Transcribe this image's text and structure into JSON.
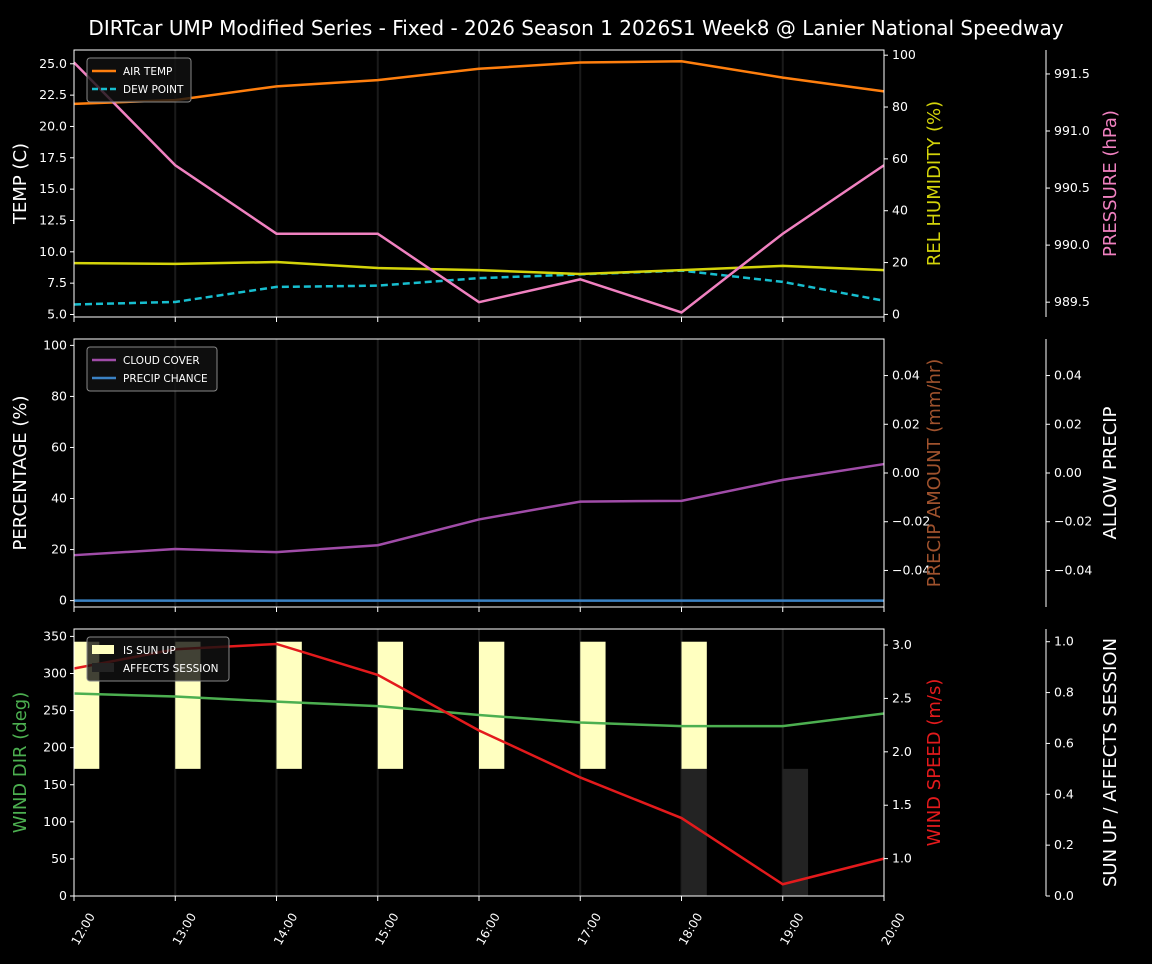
{
  "title": "DIRTcar UMP Modified Series - Fixed - 2026 Season 1 2026S1 Week8 @ Lanier National Speedway",
  "chart_data": [
    {
      "type": "line",
      "x": [
        "12:00",
        "13:00",
        "14:00",
        "15:00",
        "16:00",
        "17:00",
        "18:00",
        "19:00",
        "20:00"
      ],
      "ylabel": "TEMP (C)",
      "ylim": [
        4.8,
        26.1
      ],
      "yticks": [
        "5.0",
        "7.5",
        "10.0",
        "12.5",
        "15.0",
        "17.5",
        "20.0",
        "22.5",
        "25.0"
      ],
      "y2label": "REL HUMIDITY (%)",
      "y2lim": [
        -1,
        102
      ],
      "y2ticks": [
        "0",
        "20",
        "40",
        "60",
        "80",
        "100"
      ],
      "y3label": "PRESSURE (hPa)",
      "y3lim": [
        989.37,
        991.71
      ],
      "y3ticks": [
        "989.5",
        "990.0",
        "990.5",
        "991.0",
        "991.5"
      ],
      "legend": "top-left",
      "grid": "vertical",
      "series": [
        {
          "name": "AIR TEMP",
          "axis": "y",
          "color": "#ff7f0e",
          "dash": false,
          "values": [
            21.8,
            22.1,
            23.2,
            23.7,
            24.6,
            25.1,
            25.2,
            23.9,
            22.8
          ]
        },
        {
          "name": "DEW POINT",
          "axis": "y",
          "color": "#17becf",
          "dash": true,
          "values": [
            5.8,
            6.0,
            7.2,
            7.3,
            7.9,
            8.2,
            8.5,
            7.6,
            6.1
          ]
        },
        {
          "axis": "y2",
          "color": "#d4d40a",
          "dash": false,
          "values": [
            19.8,
            19.5,
            20.2,
            17.9,
            17.1,
            15.6,
            17.1,
            18.7,
            17.1
          ]
        },
        {
          "axis": "y3",
          "color": "#f081c0",
          "dash": false,
          "values": [
            991.6,
            990.7,
            990.1,
            990.1,
            989.5,
            989.7,
            989.41,
            990.1,
            990.7
          ]
        }
      ]
    },
    {
      "type": "line",
      "x": [
        "12:00",
        "13:00",
        "14:00",
        "15:00",
        "16:00",
        "17:00",
        "18:00",
        "19:00",
        "20:00"
      ],
      "ylabel": "PERCENTAGE (%)",
      "ylim": [
        -2.5,
        102.5
      ],
      "yticks": [
        "0",
        "20",
        "40",
        "60",
        "80",
        "100"
      ],
      "y2label": "PRECIP AMOUNT (mm/hr)",
      "y2lim": [
        -0.055,
        0.055
      ],
      "y2ticks": [
        "−0.04",
        "−0.02",
        "0.00",
        "0.02",
        "0.04"
      ],
      "y3label": "ALLOW PRECIP",
      "y3lim": [
        -0.055,
        0.055
      ],
      "y3ticks": [
        "−0.04",
        "−0.02",
        "0.00",
        "0.02",
        "0.04"
      ],
      "legend": "top-left",
      "grid": "vertical",
      "series": [
        {
          "name": "CLOUD COVER",
          "axis": "y",
          "color": "#a04ca8",
          "values": [
            17.8,
            20.2,
            19.0,
            21.7,
            31.8,
            38.8,
            39.1,
            47.3,
            53.5
          ]
        },
        {
          "name": "PRECIP CHANCE",
          "axis": "y",
          "color": "#3b82c4",
          "values": [
            0,
            0,
            0,
            0,
            0,
            0,
            0,
            0,
            0
          ]
        }
      ]
    },
    {
      "type": "line",
      "x": [
        "12:00",
        "13:00",
        "14:00",
        "15:00",
        "16:00",
        "17:00",
        "18:00",
        "19:00",
        "20:00"
      ],
      "ylabel": "WIND DIR (deg)",
      "ylim": [
        0,
        360
      ],
      "yticks": [
        "0",
        "50",
        "100",
        "150",
        "200",
        "250",
        "300",
        "350"
      ],
      "y2label": "WIND SPEED (m/s)",
      "y2lim": [
        0.65,
        3.15
      ],
      "y2ticks": [
        "1.0",
        "1.5",
        "2.0",
        "2.5",
        "3.0"
      ],
      "y3label": "SUN UP / AFFECTS SESSION",
      "y3lim": [
        0,
        1.05
      ],
      "y3ticks": [
        "0.0",
        "0.2",
        "0.4",
        "0.6",
        "0.8",
        "1.0"
      ],
      "legend": "top-left",
      "grid": "vertical",
      "bars": [
        {
          "name": "IS SUN UP",
          "color": "#ffffc0",
          "values": [
            1,
            1,
            1,
            1,
            1,
            1,
            1,
            0,
            0
          ]
        },
        {
          "name": "AFFECTS SESSION",
          "color": "#232323",
          "values": [
            0,
            0,
            0,
            0,
            0,
            0,
            1,
            1,
            0
          ]
        }
      ],
      "series": [
        {
          "axis": "y",
          "color": "#4caf50",
          "values": [
            273,
            269,
            262,
            256,
            244,
            234,
            229,
            229,
            246
          ]
        },
        {
          "axis": "y2",
          "color": "#e31a1c",
          "values": [
            2.78,
            2.96,
            3.01,
            2.72,
            2.2,
            1.76,
            1.38,
            0.76,
            1.0
          ]
        }
      ]
    }
  ]
}
